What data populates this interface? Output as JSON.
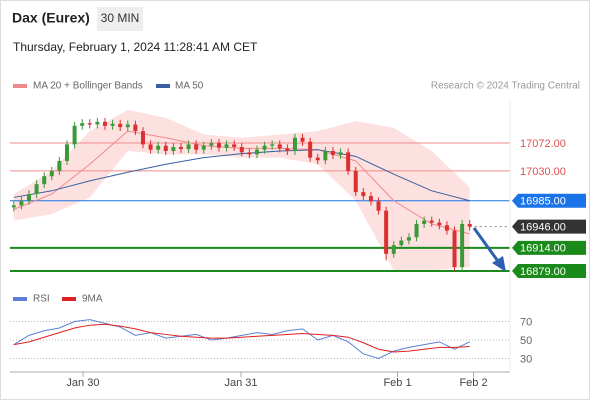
{
  "chart_data": {
    "type": "candlestick",
    "title": "Dax (Eurex)",
    "interval": "30 MIN",
    "subtitle": "Thursday, February 1, 2024 11:28:41 AM CET",
    "credit": "Research © 2024 Trading Central",
    "up_color": "#3a9a3a",
    "down_color": "#d93030",
    "xlim": [
      -0.5,
      65.3
    ],
    "ylim": [
      16870,
      17130
    ],
    "xticks": [
      {
        "value": 9.1,
        "label": "Jan 30"
      },
      {
        "value": 29.9,
        "label": "Jan 31"
      },
      {
        "value": 50.5,
        "label": "Feb 1"
      },
      {
        "value": 60.5,
        "label": "Feb 2"
      }
    ],
    "open": [
      16975,
      16978,
      16985,
      16995,
      17010,
      17022,
      17030,
      17045,
      17070,
      17098,
      17102,
      17100,
      17104,
      17098,
      17101,
      17096,
      17100,
      17090,
      17070,
      17062,
      17068,
      17060,
      17066,
      17063,
      17070,
      17062,
      17068,
      17072,
      17065,
      17070,
      17066,
      17058,
      17055,
      17062,
      17068,
      17070,
      17064,
      17060,
      17080,
      17074,
      17050,
      17046,
      17060,
      17054,
      17058,
      17030,
      16998,
      16992,
      16984,
      16970,
      16905,
      16918,
      16925,
      16930,
      16950,
      16955,
      16952,
      16948,
      16940,
      16885,
      16950
    ],
    "close": [
      16978,
      16985,
      16995,
      17010,
      17022,
      17030,
      17045,
      17070,
      17098,
      17102,
      17100,
      17104,
      17098,
      17101,
      17096,
      17100,
      17090,
      17070,
      17062,
      17068,
      17060,
      17066,
      17063,
      17070,
      17062,
      17068,
      17072,
      17065,
      17070,
      17066,
      17058,
      17055,
      17062,
      17068,
      17070,
      17064,
      17060,
      17080,
      17074,
      17050,
      17046,
      17060,
      17054,
      17058,
      17030,
      16998,
      16992,
      16984,
      16970,
      16905,
      16918,
      16925,
      16930,
      16950,
      16955,
      16952,
      16948,
      16940,
      16885,
      16950,
      16946
    ],
    "high": [
      16984,
      16991,
      17001,
      17016,
      17028,
      17036,
      17051,
      17076,
      17104,
      17108,
      17108,
      17110,
      17110,
      17107,
      17107,
      17106,
      17106,
      17096,
      17076,
      17074,
      17074,
      17072,
      17072,
      17076,
      17076,
      17074,
      17078,
      17078,
      17076,
      17076,
      17072,
      17064,
      17068,
      17074,
      17076,
      17076,
      17070,
      17086,
      17086,
      17080,
      17056,
      17066,
      17066,
      17064,
      17064,
      17036,
      17004,
      16998,
      16990,
      16976,
      16924,
      16931,
      16936,
      16956,
      16961,
      16961,
      16958,
      16954,
      16946,
      16956,
      16956
    ],
    "low": [
      16969,
      16972,
      16979,
      16989,
      17004,
      17016,
      17024,
      17039,
      17064,
      17092,
      17094,
      17094,
      17092,
      17092,
      17090,
      17090,
      17084,
      17064,
      17056,
      17056,
      17054,
      17054,
      17057,
      17057,
      17056,
      17056,
      17062,
      17059,
      17059,
      17060,
      17052,
      17049,
      17049,
      17056,
      17062,
      17058,
      17054,
      17054,
      17068,
      17044,
      17040,
      17040,
      17048,
      17048,
      17024,
      16992,
      16986,
      16978,
      16964,
      16895,
      16899,
      16912,
      16919,
      16924,
      16944,
      16946,
      16942,
      16934,
      16879,
      16879,
      16940
    ],
    "overlays": [
      {
        "name": "MA 20 + Bollinger Bands",
        "color": "#f08a8a",
        "x": [
          0,
          5,
          10,
          15,
          20,
          25,
          30,
          35,
          40,
          45,
          50,
          55,
          60
        ],
        "values": [
          16972,
          16995,
          17040,
          17090,
          17080,
          17068,
          17064,
          17064,
          17062,
          17045,
          16985,
          16950,
          16935
        ]
      },
      {
        "name": "MA 50",
        "color": "#3a5fa0",
        "x": [
          0,
          5,
          10,
          15,
          20,
          25,
          30,
          35,
          40,
          45,
          50,
          55,
          60
        ],
        "values": [
          16990,
          17000,
          17015,
          17028,
          17040,
          17050,
          17056,
          17060,
          17062,
          17052,
          17025,
          17000,
          16985
        ]
      }
    ],
    "band": {
      "color": "#fde0e0",
      "x": [
        0,
        5,
        10,
        15,
        20,
        25,
        30,
        35,
        40,
        45,
        50,
        55,
        60
      ],
      "upper": [
        16995,
        17030,
        17090,
        17122,
        17110,
        17085,
        17080,
        17085,
        17090,
        17105,
        17095,
        17060,
        17005
      ],
      "lower": [
        16955,
        16965,
        16990,
        17060,
        17055,
        17055,
        17050,
        17050,
        17040,
        16985,
        16880,
        16880,
        16885
      ]
    },
    "levels": [
      {
        "value": 17072,
        "label": "17072.00",
        "color": "#f28b8b",
        "style": "text"
      },
      {
        "value": 17030,
        "label": "17030.00",
        "color": "#f28b8b",
        "style": "text"
      },
      {
        "value": 16985,
        "label": "16985.00",
        "color": "#1a73e8",
        "style": "box"
      },
      {
        "value": 16946,
        "label": "16946.00",
        "color": "#333333",
        "style": "dashed"
      },
      {
        "value": 16914,
        "label": "16914.00",
        "color": "#1a8a1a",
        "style": "thick"
      },
      {
        "value": 16879,
        "label": "16879.00",
        "color": "#1a8a1a",
        "style": "thick"
      }
    ],
    "rsi": {
      "ylim": [
        17,
        82
      ],
      "yticks": [
        70,
        50,
        30
      ],
      "x": [
        0,
        2,
        4,
        6,
        8,
        10,
        12,
        14,
        16,
        18,
        20,
        22,
        24,
        26,
        28,
        30,
        32,
        34,
        36,
        38,
        40,
        42,
        44,
        46,
        48,
        50,
        52,
        54,
        56,
        58,
        60
      ],
      "series": [
        {
          "name": "RSI",
          "color": "#5b7fd6",
          "values": [
            45,
            55,
            60,
            63,
            70,
            72,
            68,
            64,
            55,
            58,
            52,
            54,
            56,
            50,
            52,
            55,
            58,
            56,
            60,
            62,
            50,
            55,
            48,
            35,
            30,
            38,
            42,
            45,
            48,
            40,
            48
          ]
        },
        {
          "name": "9MA",
          "color": "#e02020",
          "values": [
            45,
            48,
            53,
            58,
            63,
            66,
            67,
            65,
            62,
            58,
            56,
            54,
            53,
            52,
            52,
            53,
            54,
            55,
            56,
            57,
            56,
            55,
            53,
            47,
            40,
            37,
            38,
            40,
            42,
            42,
            43
          ]
        }
      ]
    }
  }
}
